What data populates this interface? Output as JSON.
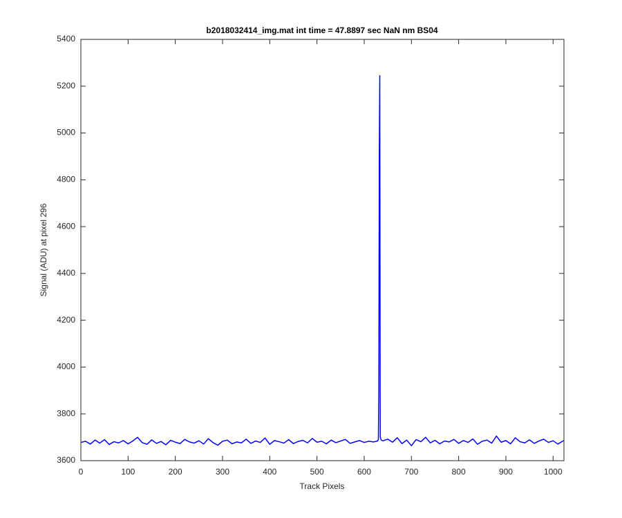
{
  "chart_data": {
    "type": "line",
    "title": "b2018032414_img.mat int time = 47.8897 sec  NaN nm BS04",
    "xlabel": "Track Pixels",
    "ylabel": "Signal (ADU) at pixel 296",
    "color": "#0000ff",
    "x": [
      0,
      10,
      20,
      30,
      40,
      50,
      60,
      70,
      80,
      90,
      100,
      110,
      120,
      130,
      140,
      150,
      160,
      170,
      180,
      190,
      200,
      210,
      220,
      230,
      240,
      250,
      260,
      270,
      280,
      290,
      300,
      310,
      320,
      330,
      340,
      350,
      360,
      370,
      380,
      390,
      400,
      410,
      420,
      430,
      440,
      450,
      460,
      470,
      480,
      490,
      500,
      510,
      520,
      530,
      540,
      550,
      560,
      570,
      580,
      590,
      600,
      610,
      620,
      628,
      630,
      631,
      632,
      633,
      634,
      636,
      640,
      650,
      660,
      670,
      680,
      690,
      700,
      710,
      720,
      730,
      740,
      750,
      760,
      770,
      780,
      790,
      800,
      810,
      820,
      830,
      840,
      850,
      860,
      870,
      880,
      890,
      900,
      910,
      920,
      930,
      940,
      950,
      960,
      970,
      980,
      990,
      1000,
      1010,
      1020,
      1023
    ],
    "values": [
      3678,
      3683,
      3671,
      3688,
      3675,
      3690,
      3669,
      3681,
      3676,
      3686,
      3672,
      3684,
      3700,
      3677,
      3670,
      3689,
      3674,
      3682,
      3668,
      3687,
      3679,
      3673,
      3691,
      3680,
      3675,
      3685,
      3671,
      3694,
      3677,
      3666,
      3683,
      3688,
      3672,
      3680,
      3676,
      3692,
      3674,
      3684,
      3678,
      3697,
      3670,
      3686,
      3681,
      3675,
      3690,
      3673,
      3682,
      3687,
      3676,
      3695,
      3679,
      3683,
      3672,
      3688,
      3677,
      3684,
      3691,
      3674,
      3680,
      3686,
      3678,
      3683,
      3680,
      3684,
      3690,
      3900,
      4920,
      5245,
      3700,
      3688,
      3685,
      3692,
      3679,
      3698,
      3673,
      3688,
      3664,
      3690,
      3681,
      3700,
      3676,
      3687,
      3672,
      3684,
      3680,
      3691,
      3674,
      3686,
      3678,
      3693,
      3670,
      3683,
      3688,
      3675,
      3705,
      3679,
      3686,
      3672,
      3698,
      3681,
      3676,
      3689,
      3674,
      3684,
      3692,
      3678,
      3685,
      3671,
      3683,
      3686
    ],
    "xlim": [
      0,
      1023
    ],
    "xticks": [
      0,
      100,
      200,
      300,
      400,
      500,
      600,
      700,
      800,
      900,
      1000
    ],
    "ylim": [
      3600,
      5400
    ],
    "yticks": [
      3600,
      3800,
      4000,
      4200,
      4400,
      4600,
      4800,
      5000,
      5200,
      5400
    ],
    "grid": false
  }
}
